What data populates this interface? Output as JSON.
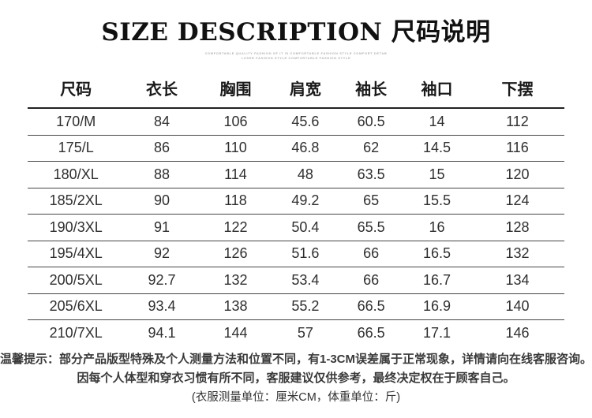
{
  "page": {
    "background_color": "#ffffff",
    "text_color": "#2d2d2d",
    "line_color": "#464646",
    "header_line_color": "#222222"
  },
  "header": {
    "title": "SIZE DESCRIPTION 尺码说明",
    "subtitle_line1": "COMFORTABLE QUALITY FASHION OF IT IS COMFORTABLE FASHION STYLE COMFORT DETAB",
    "subtitle_line2": "LOSER FASHION STYLE COMFORTABLE FASHION STYLE"
  },
  "table": {
    "headers": [
      "尺码",
      "衣长",
      "胸围",
      "肩宽",
      "袖长",
      "袖口",
      "下摆"
    ],
    "rows": [
      [
        "170/M",
        "84",
        "106",
        "45.6",
        "60.5",
        "14",
        "112"
      ],
      [
        "175/L",
        "86",
        "110",
        "46.8",
        "62",
        "14.5",
        "116"
      ],
      [
        "180/XL",
        "88",
        "114",
        "48",
        "63.5",
        "15",
        "120"
      ],
      [
        "185/2XL",
        "90",
        "118",
        "49.2",
        "65",
        "15.5",
        "124"
      ],
      [
        "190/3XL",
        "91",
        "122",
        "50.4",
        "65.5",
        "16",
        "128"
      ],
      [
        "195/4XL",
        "92",
        "126",
        "51.6",
        "66",
        "16.5",
        "132"
      ],
      [
        "200/5XL",
        "92.7",
        "132",
        "53.4",
        "66",
        "16.7",
        "134"
      ],
      [
        "205/6XL",
        "93.4",
        "138",
        "55.2",
        "66.5",
        "16.9",
        "140"
      ],
      [
        "210/7XL",
        "94.1",
        "144",
        "57",
        "66.5",
        "17.1",
        "146"
      ]
    ],
    "column_widths_percent": [
      18,
      14,
      13.5,
      12.5,
      12,
      12.5,
      17.5
    ]
  },
  "chart_data": {
    "type": "table",
    "title": "SIZE DESCRIPTION 尺码说明",
    "columns": [
      "尺码",
      "衣长",
      "胸围",
      "肩宽",
      "袖长",
      "袖口",
      "下摆"
    ],
    "rows": [
      [
        "170/M",
        84,
        106,
        45.6,
        60.5,
        14,
        112
      ],
      [
        "175/L",
        86,
        110,
        46.8,
        62,
        14.5,
        116
      ],
      [
        "180/XL",
        88,
        114,
        48,
        63.5,
        15,
        120
      ],
      [
        "185/2XL",
        90,
        118,
        49.2,
        65,
        15.5,
        124
      ],
      [
        "190/3XL",
        91,
        122,
        50.4,
        65.5,
        16,
        128
      ],
      [
        "195/4XL",
        92,
        126,
        51.6,
        66,
        16.5,
        132
      ],
      [
        "200/5XL",
        92.7,
        132,
        53.4,
        66,
        16.7,
        134
      ],
      [
        "205/6XL",
        93.4,
        138,
        55.2,
        66.5,
        16.9,
        140
      ],
      [
        "210/7XL",
        94.1,
        144,
        57,
        66.5,
        17.1,
        146
      ]
    ]
  },
  "footer": {
    "line1": "温馨提示：部分产品版型特殊及个人测量方法和位置不同，有1-3CM误差属于正常现象，详情请向在线客服咨询。",
    "line2": "因每个人体型和穿衣习惯有所不同，客服建议仅供参考，最终决定权在于顾客自己。",
    "line3": "(衣服测量单位：厘米CM，体重单位：斤)"
  }
}
